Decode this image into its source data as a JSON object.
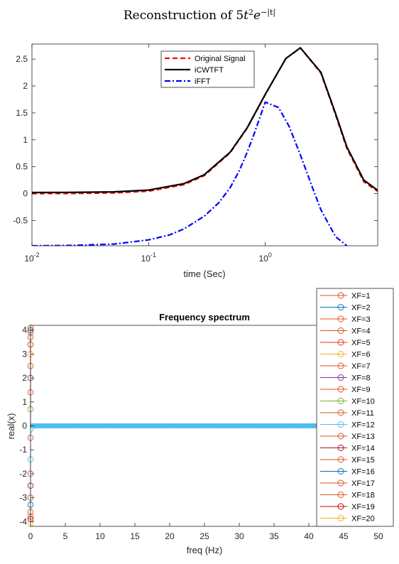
{
  "figure": {
    "title_prefix": "Reconstruction of 5",
    "title_t": "t",
    "title_t_exp": "2",
    "title_e": "e",
    "title_e_exp": "−|t|"
  },
  "chart_data": [
    {
      "type": "line",
      "title": "",
      "xlabel": "time (Sec)",
      "ylabel": "",
      "xscale": "log",
      "xlim": [
        0.01,
        9.2
      ],
      "ylim": [
        -0.97,
        2.78
      ],
      "x_ticks": [
        0.01,
        0.1,
        1
      ],
      "x_tick_labels": [
        {
          "base": "10",
          "exp": "-2"
        },
        {
          "base": "10",
          "exp": "-1"
        },
        {
          "base": "10",
          "exp": "0"
        }
      ],
      "y_ticks": [
        -0.5,
        0,
        0.5,
        1,
        1.5,
        2,
        2.5
      ],
      "y_tick_labels": [
        "-0.5",
        "0",
        "0.5",
        "1",
        "1.5",
        "2",
        "2.5"
      ],
      "grid": false,
      "legend_position": "top-center",
      "series": [
        {
          "name": "Original Signal",
          "color": "#ff0000",
          "style": "dashed",
          "x": [
            0.01,
            0.02,
            0.05,
            0.1,
            0.2,
            0.3,
            0.5,
            0.7,
            1,
            1.5,
            2,
            3,
            4,
            5,
            7,
            9.2
          ],
          "y": [
            0.0005,
            0.002,
            0.012,
            0.045,
            0.164,
            0.333,
            0.758,
            1.216,
            1.839,
            2.51,
            2.707,
            2.24,
            1.465,
            0.842,
            0.219,
            0.043
          ]
        },
        {
          "name": "iCWTFT",
          "color": "#000000",
          "style": "solid",
          "x": [
            0.01,
            0.02,
            0.05,
            0.1,
            0.2,
            0.3,
            0.5,
            0.7,
            1,
            1.5,
            2,
            3,
            4,
            5,
            7,
            9.2
          ],
          "y": [
            0.02,
            0.022,
            0.032,
            0.065,
            0.184,
            0.35,
            0.77,
            1.225,
            1.845,
            2.51,
            2.71,
            2.255,
            1.49,
            0.87,
            0.25,
            0.06
          ]
        },
        {
          "name": "iFFT",
          "color": "#0000ff",
          "style": "dashdot",
          "x": [
            0.01,
            0.02,
            0.05,
            0.1,
            0.15,
            0.2,
            0.3,
            0.4,
            0.5,
            0.6,
            0.7,
            0.8,
            1,
            1.3,
            1.6,
            2,
            2.5,
            3,
            4,
            5
          ],
          "y": [
            -0.97,
            -0.965,
            -0.94,
            -0.86,
            -0.77,
            -0.66,
            -0.42,
            -0.17,
            0.11,
            0.43,
            0.77,
            1.1,
            1.7,
            1.6,
            1.25,
            0.72,
            0.15,
            -0.3,
            -0.8,
            -0.97
          ]
        }
      ]
    },
    {
      "type": "scatter",
      "title": "Frequency spectrum",
      "xlabel": "freq (Hz)",
      "ylabel": "real(x)",
      "xlim": [
        0,
        50
      ],
      "ylim": [
        -4.2,
        4.2
      ],
      "x_ticks": [
        0,
        5,
        10,
        15,
        20,
        25,
        30,
        35,
        40,
        45,
        50
      ],
      "x_tick_labels": [
        "0",
        "5",
        "10",
        "15",
        "20",
        "25",
        "30",
        "35",
        "40",
        "45",
        "50"
      ],
      "y_ticks": [
        -4,
        -3,
        -2,
        -1,
        0,
        1,
        2,
        3,
        4
      ],
      "y_tick_labels": [
        "-4",
        "-3",
        "-2",
        "-1",
        "0",
        "1",
        "2",
        "3",
        "4"
      ],
      "grid": false,
      "legend_position": "outside-right",
      "baseline": {
        "y": 0,
        "x_range": [
          0,
          50
        ],
        "color": "#4dbeee",
        "note": "dense markers along zero"
      },
      "near_zero_values": [
        4.1,
        4.0,
        3.9,
        3.7,
        3.4,
        3.0,
        2.5,
        2.0,
        1.4,
        0.7,
        -0.5,
        -1.4,
        -2.0,
        -2.5,
        -3.0,
        -3.3,
        -3.6,
        -3.8,
        -3.9,
        -4.1
      ],
      "series": [
        {
          "name": "XF=1",
          "color": "#d95319"
        },
        {
          "name": "XF=2",
          "color": "#0072bd"
        },
        {
          "name": "XF=3",
          "color": "#d95319"
        },
        {
          "name": "XF=4",
          "color": "#d95319"
        },
        {
          "name": "XF=5",
          "color": "#e0301e"
        },
        {
          "name": "XF=6",
          "color": "#edb120"
        },
        {
          "name": "XF=7",
          "color": "#d95319"
        },
        {
          "name": "XF=8",
          "color": "#7e2f8e"
        },
        {
          "name": "XF=9",
          "color": "#d95319"
        },
        {
          "name": "XF=10",
          "color": "#77ac30"
        },
        {
          "name": "XF=11",
          "color": "#d95319"
        },
        {
          "name": "XF=12",
          "color": "#4dbeee"
        },
        {
          "name": "XF=13",
          "color": "#d95319"
        },
        {
          "name": "XF=14",
          "color": "#a2142f"
        },
        {
          "name": "XF=15",
          "color": "#d95319"
        },
        {
          "name": "XF=16",
          "color": "#0072bd"
        },
        {
          "name": "XF=17",
          "color": "#d95319"
        },
        {
          "name": "XF=18",
          "color": "#d95319"
        },
        {
          "name": "XF=19",
          "color": "#cc0000"
        },
        {
          "name": "XF=20",
          "color": "#edb120"
        }
      ]
    }
  ]
}
